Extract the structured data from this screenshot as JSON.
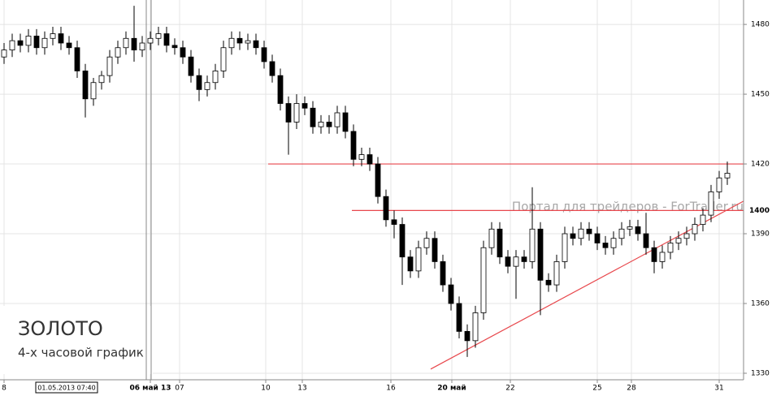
{
  "chart_data": {
    "type": "candlestick",
    "title": "ЗОЛОТО",
    "subtitle": "4-х часовой график",
    "watermark": "Портал для трейдеров - ForTrader.ru",
    "crosshair_label": "01.05.2013 07:40",
    "xlim": [
      -0.5,
      91
    ],
    "ylim": [
      1327.2,
      1490.5
    ],
    "yticks": [
      1330,
      1360,
      1390,
      1420,
      1450,
      1480
    ],
    "xticks": [
      {
        "value": 0,
        "label": "8"
      },
      {
        "value": 18,
        "label": "06 май 13",
        "bold": true
      },
      {
        "value": 21.6,
        "label": "07"
      },
      {
        "value": 32.2,
        "label": "10"
      },
      {
        "value": 36.7,
        "label": "13"
      },
      {
        "value": 47.6,
        "label": "16"
      },
      {
        "value": 55.1,
        "label": "20 май",
        "bold": true
      },
      {
        "value": 62.3,
        "label": "22"
      },
      {
        "value": 73,
        "label": "25"
      },
      {
        "value": 77.2,
        "label": "28"
      },
      {
        "value": 88,
        "label": "31"
      }
    ],
    "grid": true,
    "up_color": "#ffffff",
    "down_color": "#000000",
    "line_color": "#e8474c",
    "hlines": [
      {
        "y": 1420,
        "x0": 32.5
      },
      {
        "y": 1400,
        "x0": 42.8,
        "label": "1400"
      }
    ],
    "trendline": {
      "x": [
        52.5,
        91
      ],
      "y": [
        1331.8,
        1404
      ]
    },
    "open": [
      1466,
      1469,
      1473,
      1471,
      1475,
      1470,
      1474,
      1476,
      1472,
      1470,
      1460,
      1448,
      1455,
      1458,
      1466,
      1470,
      1474,
      1469,
      1472,
      1474,
      1476,
      1471,
      1470,
      1466,
      1458,
      1452,
      1455,
      1460,
      1470,
      1474,
      1472,
      1473,
      1470,
      1464,
      1458,
      1446,
      1438,
      1446,
      1444,
      1436,
      1438,
      1436,
      1442,
      1434,
      1422,
      1424,
      1420,
      1406,
      1396,
      1394,
      1380,
      1374,
      1384,
      1388,
      1378,
      1368,
      1360,
      1348,
      1344,
      1356,
      1384,
      1392,
      1380,
      1376,
      1380,
      1378,
      1392,
      1370,
      1368,
      1378,
      1390,
      1388,
      1392,
      1390,
      1386,
      1384,
      1388,
      1392,
      1393,
      1390,
      1384,
      1378,
      1382,
      1386,
      1388,
      1390,
      1394,
      1398,
      1408,
      1414
    ],
    "high": [
      1472,
      1476,
      1476,
      1478,
      1478,
      1477,
      1479,
      1479,
      1475,
      1473,
      1463,
      1457,
      1460,
      1469,
      1473,
      1477,
      1488,
      1475,
      1477,
      1479,
      1479,
      1474,
      1473,
      1469,
      1461,
      1458,
      1463,
      1473,
      1477,
      1477,
      1476,
      1476,
      1473,
      1467,
      1461,
      1449,
      1450,
      1449,
      1447,
      1441,
      1441,
      1445,
      1445,
      1437,
      1427,
      1427,
      1423,
      1409,
      1400,
      1397,
      1383,
      1387,
      1391,
      1391,
      1381,
      1371,
      1363,
      1351,
      1359,
      1387,
      1395,
      1395,
      1383,
      1383,
      1383,
      1410,
      1395,
      1373,
      1381,
      1393,
      1393,
      1395,
      1395,
      1393,
      1389,
      1391,
      1395,
      1396,
      1396,
      1399,
      1387,
      1385,
      1389,
      1391,
      1393,
      1397,
      1401,
      1411,
      1417,
      1421
    ],
    "low": [
      1463,
      1466,
      1468,
      1468,
      1467,
      1467,
      1471,
      1469,
      1467,
      1457,
      1440,
      1445,
      1452,
      1455,
      1463,
      1467,
      1464,
      1466,
      1469,
      1471,
      1468,
      1467,
      1463,
      1455,
      1447,
      1449,
      1452,
      1457,
      1467,
      1469,
      1469,
      1467,
      1461,
      1455,
      1443,
      1424,
      1435,
      1441,
      1433,
      1433,
      1433,
      1433,
      1431,
      1419,
      1419,
      1417,
      1403,
      1393,
      1388,
      1368,
      1371,
      1371,
      1381,
      1375,
      1365,
      1357,
      1345,
      1337,
      1341,
      1353,
      1381,
      1377,
      1373,
      1362,
      1375,
      1375,
      1355,
      1365,
      1365,
      1375,
      1385,
      1385,
      1387,
      1383,
      1381,
      1381,
      1385,
      1389,
      1387,
      1381,
      1373,
      1375,
      1379,
      1383,
      1385,
      1387,
      1391,
      1395,
      1405,
      1411
    ],
    "close": [
      1469,
      1473,
      1471,
      1475,
      1470,
      1474,
      1476,
      1472,
      1470,
      1460,
      1448,
      1455,
      1458,
      1466,
      1470,
      1474,
      1469,
      1472,
      1474,
      1476,
      1471,
      1470,
      1466,
      1458,
      1452,
      1455,
      1460,
      1470,
      1474,
      1472,
      1473,
      1470,
      1464,
      1458,
      1446,
      1438,
      1446,
      1444,
      1436,
      1438,
      1436,
      1442,
      1434,
      1422,
      1424,
      1420,
      1406,
      1396,
      1394,
      1380,
      1374,
      1384,
      1388,
      1378,
      1368,
      1360,
      1348,
      1344,
      1356,
      1384,
      1392,
      1380,
      1376,
      1380,
      1378,
      1392,
      1370,
      1368,
      1378,
      1390,
      1388,
      1392,
      1390,
      1386,
      1384,
      1388,
      1392,
      1393,
      1390,
      1384,
      1378,
      1382,
      1386,
      1388,
      1390,
      1394,
      1398,
      1408,
      1414,
      1416
    ]
  }
}
